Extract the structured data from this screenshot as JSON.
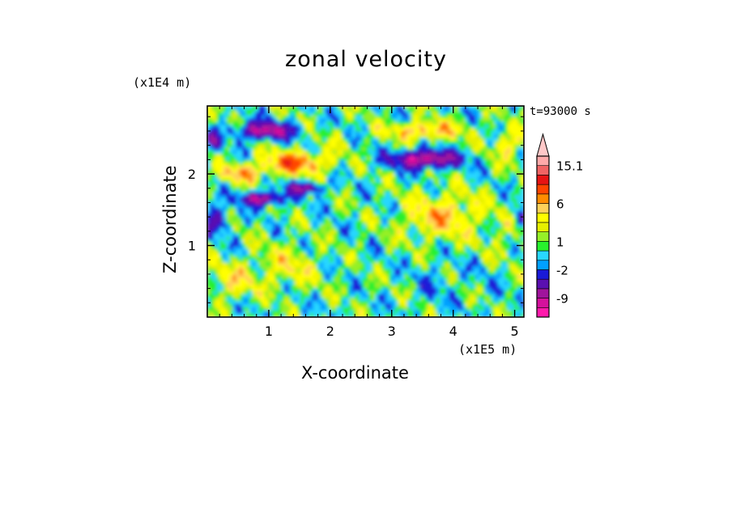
{
  "chart_data": {
    "type": "heatmap",
    "title": "zonal velocity",
    "xlabel": "X-coordinate",
    "ylabel": "Z-coordinate",
    "x_unit": "(x1E5 m)",
    "y_unit": "(x1E4 m)",
    "time_label": "t=93000 s",
    "xlim": [
      0,
      5.15
    ],
    "ylim": [
      0,
      2.95
    ],
    "x_ticks": [
      1,
      2,
      3,
      4,
      5
    ],
    "y_ticks": [
      1,
      2
    ],
    "x_tick_labels": [
      "1",
      "2",
      "3",
      "4",
      "5"
    ],
    "y_tick_labels": [
      "1",
      "2"
    ],
    "colorbar": {
      "levels": [
        -13,
        -11,
        -9,
        -7,
        -4.5,
        -2,
        -1,
        0,
        1,
        2,
        3,
        4.5,
        6,
        8,
        10,
        12.5,
        15.1,
        17
      ],
      "colors": [
        "#ff1aac",
        "#d4119c",
        "#a0149c",
        "#5a0fb0",
        "#1a1ad8",
        "#00a0ff",
        "#28d7ff",
        "#28f02d",
        "#96f028",
        "#e6f000",
        "#ffff00",
        "#ffd25a",
        "#ff8c00",
        "#ff4500",
        "#e61414",
        "#f06464",
        "#ffaaaa",
        "#ffc8c8"
      ],
      "labeled_ticks": [
        {
          "value": 15.1,
          "label": "15.1"
        },
        {
          "value": 6,
          "label": "6"
        },
        {
          "value": 1,
          "label": "1"
        },
        {
          "value": -2,
          "label": "-2"
        },
        {
          "value": -9,
          "label": "-9"
        }
      ],
      "extend": "max"
    },
    "features": [
      {
        "x": 0.95,
        "z": 2.6,
        "value": -10,
        "sx": 0.45,
        "sz": 0.12
      },
      {
        "x": 0.9,
        "z": 1.65,
        "value": -10,
        "sx": 0.35,
        "sz": 0.09
      },
      {
        "x": 1.6,
        "z": 1.8,
        "value": -8,
        "sx": 0.3,
        "sz": 0.08
      },
      {
        "x": 3.55,
        "z": 2.2,
        "value": -11,
        "sx": 0.55,
        "sz": 0.12
      },
      {
        "x": 0.1,
        "z": 2.45,
        "value": -6,
        "sx": 0.12,
        "sz": 0.12
      },
      {
        "x": 0.15,
        "z": 1.35,
        "value": -6,
        "sx": 0.2,
        "sz": 0.18
      },
      {
        "x": 5.1,
        "z": 1.4,
        "value": -5,
        "sx": 0.1,
        "sz": 0.15
      },
      {
        "x": 1.4,
        "z": 2.15,
        "value": 8,
        "sx": 0.5,
        "sz": 0.15
      },
      {
        "x": 0.55,
        "z": 2.0,
        "value": 6,
        "sx": 0.35,
        "sz": 0.12
      },
      {
        "x": 3.55,
        "z": 2.6,
        "value": 6,
        "sx": 0.6,
        "sz": 0.12
      },
      {
        "x": 3.8,
        "z": 1.4,
        "value": 5,
        "sx": 0.6,
        "sz": 0.3
      },
      {
        "x": 4.9,
        "z": 2.4,
        "value": 4,
        "sx": 0.25,
        "sz": 0.2
      },
      {
        "x": 0.4,
        "z": 0.5,
        "value": 3.5,
        "sx": 0.4,
        "sz": 0.25
      },
      {
        "x": 1.3,
        "z": 0.7,
        "value": 3,
        "sx": 0.5,
        "sz": 0.3
      },
      {
        "x": 3.7,
        "z": 0.45,
        "value": -1.5,
        "sx": 0.35,
        "sz": 0.3
      },
      {
        "x": 4.6,
        "z": 0.6,
        "value": -1,
        "sx": 0.35,
        "sz": 0.4
      },
      {
        "x": 4.3,
        "z": 1.6,
        "value": 0.5,
        "sx": 0.4,
        "sz": 0.3
      },
      {
        "x": 2.0,
        "z": 2.3,
        "value": 1,
        "sx": 0.3,
        "sz": 0.3
      },
      {
        "x": 4.8,
        "z": 1.0,
        "value": 1.5,
        "sx": 0.4,
        "sz": 0.4
      }
    ]
  }
}
